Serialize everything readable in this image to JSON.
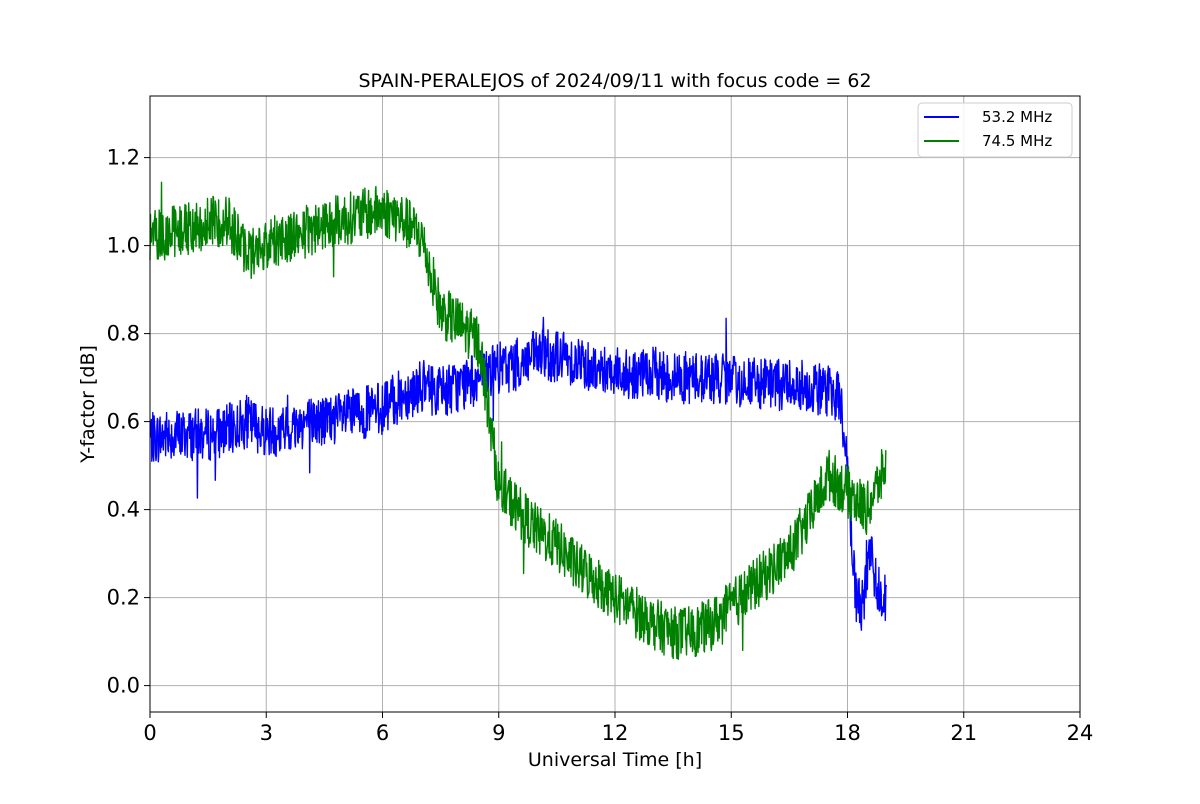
{
  "chart_data": {
    "type": "line",
    "title": "SPAIN-PERALEJOS of 2024/09/11 with focus code = 62",
    "xlabel": "Universal Time [h]",
    "ylabel": "Y-factor [dB]",
    "xlim": [
      0,
      24
    ],
    "ylim": [
      -0.06,
      1.34
    ],
    "xticks": [
      0,
      3,
      6,
      9,
      12,
      15,
      18,
      21,
      24
    ],
    "yticks": [
      0.0,
      0.2,
      0.4,
      0.6,
      0.8,
      1.0,
      1.2
    ],
    "ytick_labels": [
      "0.0",
      "0.2",
      "0.4",
      "0.6",
      "0.8",
      "1.0",
      "1.2"
    ],
    "grid": true,
    "legend_position": "top-right",
    "series": [
      {
        "name": "53.2 MHz",
        "color": "#0000ff",
        "x": [
          0,
          0.5,
          1,
          1.5,
          2,
          2.5,
          3,
          3.5,
          4,
          4.5,
          5,
          5.5,
          6,
          6.5,
          7,
          7.5,
          8,
          8.5,
          9,
          9.5,
          10,
          10.5,
          11,
          11.5,
          12,
          12.5,
          13,
          13.5,
          14,
          14.5,
          15,
          15.5,
          16,
          16.5,
          17,
          17.5,
          17.8,
          18,
          18.2,
          18.4,
          18.6,
          18.8,
          19
        ],
        "values": [
          0.56,
          0.57,
          0.57,
          0.57,
          0.58,
          0.6,
          0.58,
          0.58,
          0.6,
          0.6,
          0.61,
          0.62,
          0.63,
          0.66,
          0.68,
          0.67,
          0.68,
          0.7,
          0.72,
          0.73,
          0.75,
          0.75,
          0.74,
          0.72,
          0.72,
          0.7,
          0.71,
          0.7,
          0.7,
          0.7,
          0.69,
          0.69,
          0.68,
          0.69,
          0.68,
          0.67,
          0.66,
          0.5,
          0.2,
          0.18,
          0.3,
          0.22,
          0.2
        ],
        "spread": 0.06
      },
      {
        "name": "74.5 MHz",
        "color": "#008000",
        "x": [
          0,
          0.5,
          1,
          1.5,
          2,
          2.5,
          3,
          3.5,
          4,
          4.5,
          5,
          5.5,
          6,
          6.5,
          7,
          7.5,
          8,
          8.5,
          9,
          9.5,
          10,
          10.5,
          11,
          11.5,
          12,
          12.5,
          13,
          13.5,
          14,
          14.5,
          15,
          15.5,
          16,
          16.5,
          17,
          17.5,
          18,
          18.5,
          19
        ],
        "values": [
          1.02,
          1.03,
          1.04,
          1.05,
          1.06,
          0.98,
          1.0,
          1.02,
          1.03,
          1.05,
          1.06,
          1.07,
          1.08,
          1.06,
          1.02,
          0.85,
          0.82,
          0.78,
          0.45,
          0.4,
          0.35,
          0.32,
          0.27,
          0.24,
          0.2,
          0.17,
          0.14,
          0.12,
          0.12,
          0.14,
          0.18,
          0.22,
          0.26,
          0.3,
          0.38,
          0.48,
          0.44,
          0.4,
          0.5
        ],
        "spread": 0.06
      }
    ]
  }
}
